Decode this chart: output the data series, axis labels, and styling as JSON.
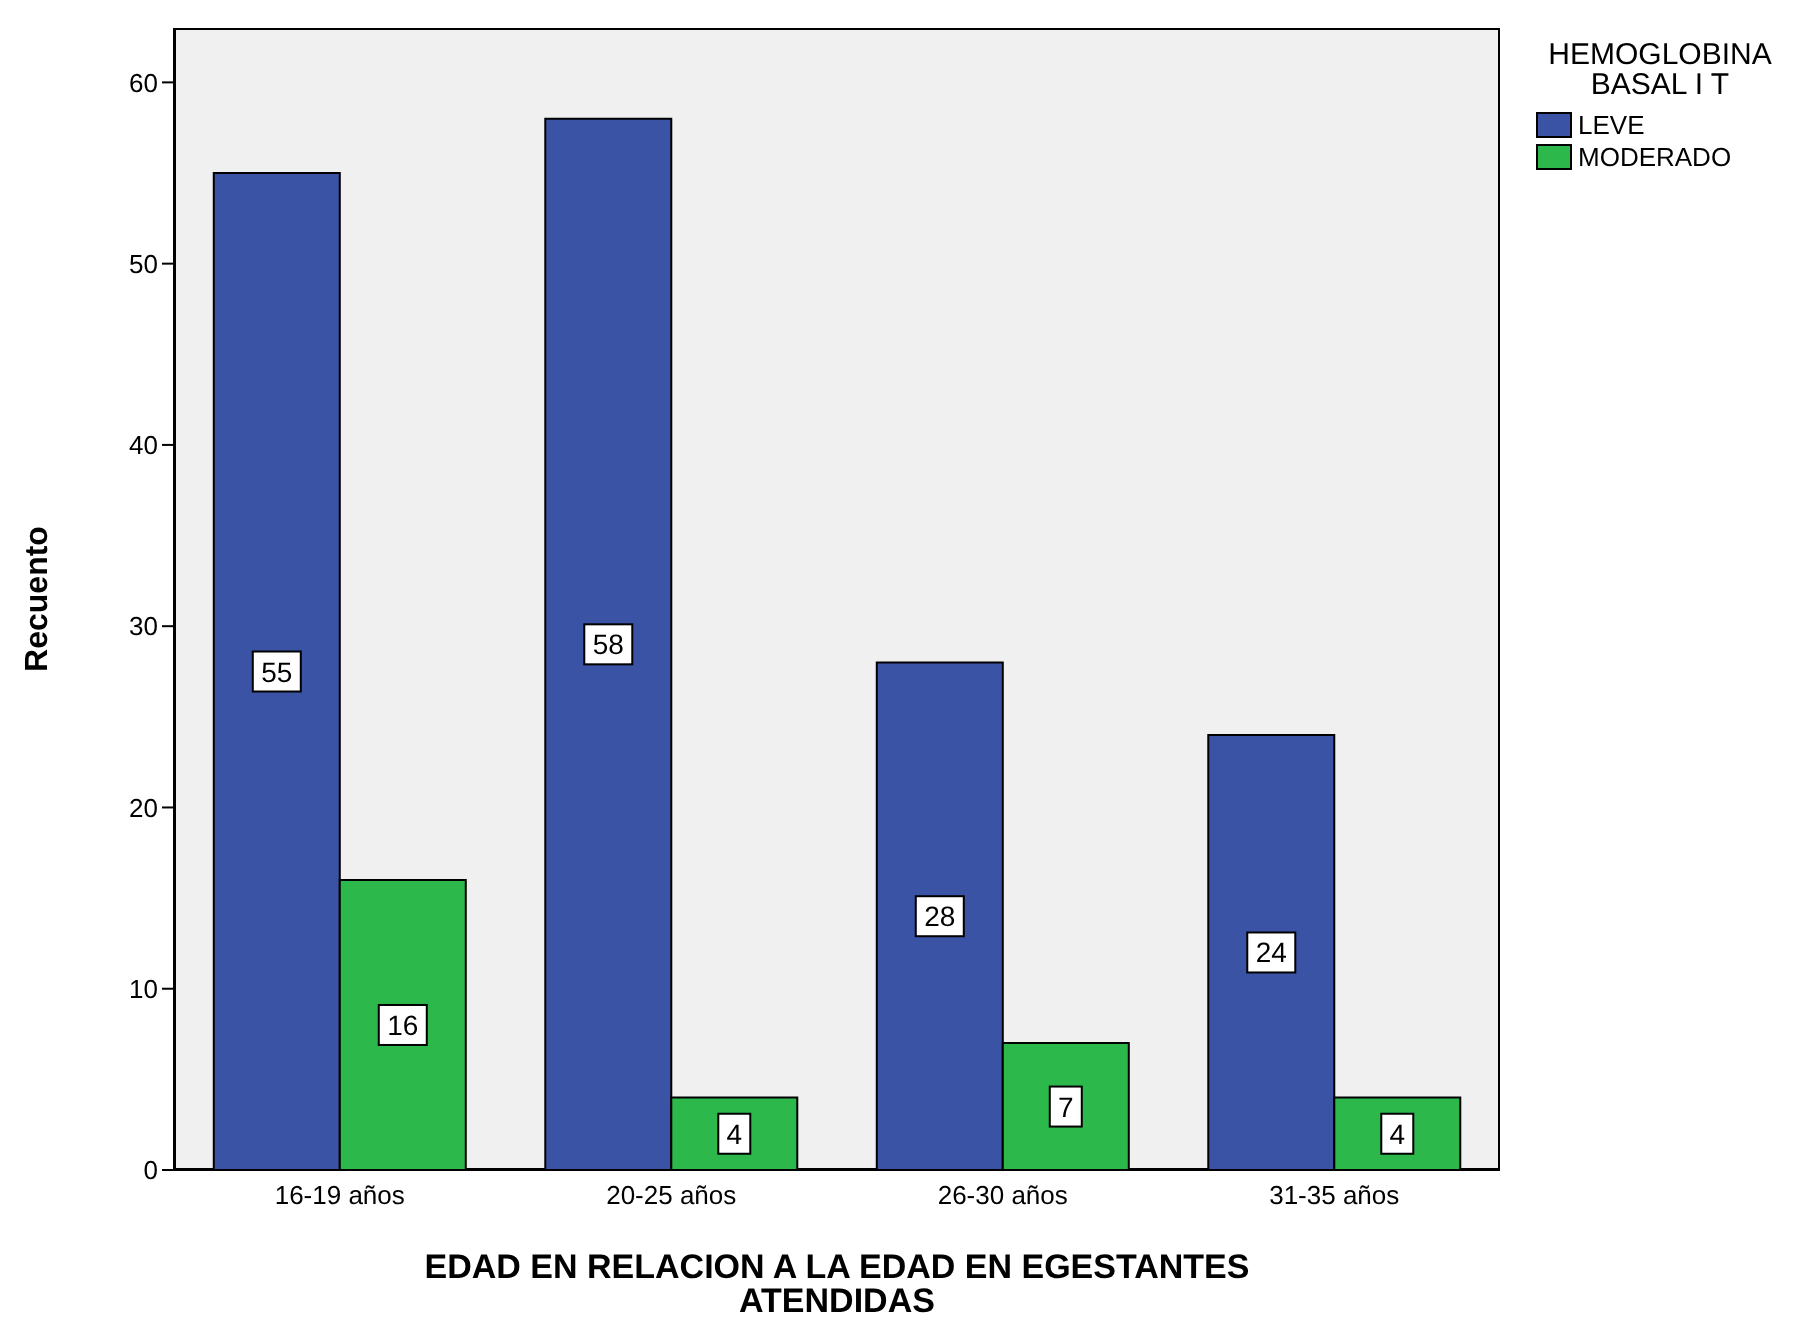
{
  "chart_data": {
    "type": "bar",
    "xlabel": "EDAD EN RELACION A LA EDAD EN EGESTANTES ATENDIDAS",
    "ylabel": "Recuento",
    "legend_title": "HEMOGLOBINA BASAL I T",
    "categories": [
      "16-19 años",
      "20-25 años",
      "26-30 años",
      "31-35 años"
    ],
    "series": [
      {
        "name": "LEVE",
        "color": "#3a53a4",
        "values": [
          55,
          58,
          28,
          24
        ]
      },
      {
        "name": "MODERADO",
        "color": "#2db84b",
        "values": [
          16,
          4,
          7,
          4
        ]
      }
    ],
    "ylim": [
      0,
      63
    ],
    "yticks": [
      0,
      10,
      20,
      30,
      40,
      50,
      60
    ],
    "legend": "top right",
    "data_labels": true
  }
}
